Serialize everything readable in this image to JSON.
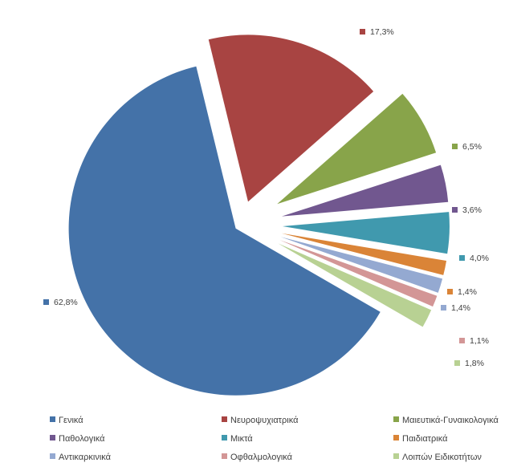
{
  "chart_data": {
    "type": "pie",
    "exploded": true,
    "legend_position": "bottom",
    "label_suffix": "%",
    "slices": [
      {
        "name": "Γενικά",
        "value": 62.8,
        "label": "62,8%",
        "color": "#4472A8"
      },
      {
        "name": "Νευροψυχιατρικά",
        "value": 17.3,
        "label": "17,3%",
        "color": "#A84442"
      },
      {
        "name": "Μαιευτικά-Γυναικολογικά",
        "value": 6.5,
        "label": "6,5%",
        "color": "#88A44A"
      },
      {
        "name": "Παθολογικά",
        "value": 3.6,
        "label": "3,6%",
        "color": "#71578F"
      },
      {
        "name": "Μικτά",
        "value": 4.0,
        "label": "4,0%",
        "color": "#4099AE"
      },
      {
        "name": "Παιδιατρικά",
        "value": 1.4,
        "label": "1,4%",
        "color": "#DA8437"
      },
      {
        "name": "Αντικαρκινικά",
        "value": 1.4,
        "label": "1,4%",
        "color": "#94A9D1"
      },
      {
        "name": "Οφθαλμολογικά",
        "value": 1.1,
        "label": "1,1%",
        "color": "#D39696"
      },
      {
        "name": "Λοιπών Ειδικοτήτων",
        "value": 1.8,
        "label": "1,8%",
        "color": "#B8D193"
      }
    ]
  }
}
